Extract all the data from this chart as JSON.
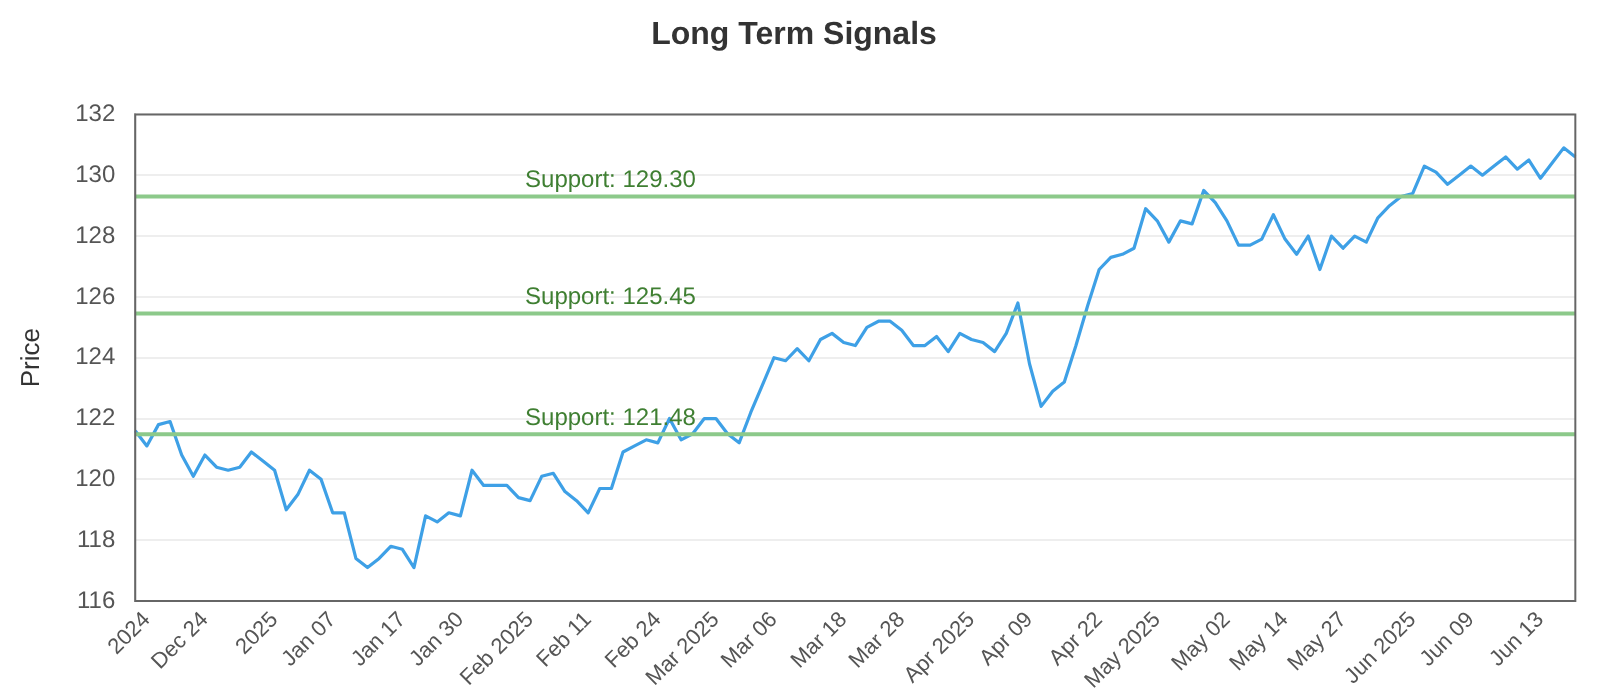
{
  "chart_data": {
    "type": "line",
    "title": "Long Term Signals",
    "ylabel": "Price",
    "categories": [
      null,
      "2024",
      null,
      null,
      null,
      null,
      "Dec 24",
      null,
      null,
      null,
      null,
      null,
      "2025",
      null,
      null,
      null,
      null,
      "Jan 07",
      null,
      null,
      null,
      null,
      null,
      "Jan 17",
      null,
      null,
      null,
      null,
      "Jan 30",
      null,
      null,
      null,
      null,
      null,
      "Feb 2025",
      null,
      null,
      null,
      null,
      "Feb 11",
      null,
      null,
      null,
      null,
      null,
      "Feb 24",
      null,
      null,
      null,
      null,
      "Mar 2025",
      null,
      null,
      null,
      null,
      "Mar 06",
      null,
      null,
      null,
      null,
      null,
      "Mar 18",
      null,
      null,
      null,
      null,
      "Mar 28",
      null,
      null,
      null,
      null,
      null,
      "Apr 2025",
      null,
      null,
      null,
      null,
      "Apr 09",
      null,
      null,
      null,
      null,
      null,
      "Apr 22",
      null,
      null,
      null,
      null,
      "May 2025",
      null,
      null,
      null,
      null,
      null,
      "May 02",
      null,
      null,
      null,
      null,
      "May 14",
      null,
      null,
      null,
      null,
      "May 27",
      null,
      null,
      null,
      null,
      null,
      "Jun 2025",
      null,
      null,
      null,
      null,
      "Jun 09",
      null,
      null,
      null,
      null,
      null,
      "Jun 13",
      null,
      null,
      null
    ],
    "series": [
      {
        "color": "#3ea0e6",
        "values": [
          121.6,
          121.1,
          121.8,
          121.9,
          120.8,
          120.1,
          120.8,
          120.4,
          120.3,
          120.4,
          120.9,
          120.6,
          120.3,
          119.0,
          119.5,
          120.3,
          120.0,
          118.9,
          118.9,
          117.4,
          117.1,
          117.4,
          117.8,
          117.7,
          117.1,
          118.8,
          118.6,
          118.9,
          118.8,
          120.3,
          119.8,
          119.8,
          119.8,
          119.4,
          119.3,
          120.1,
          120.2,
          119.6,
          119.3,
          118.9,
          119.7,
          119.7,
          120.9,
          121.1,
          121.3,
          121.2,
          122.0,
          121.3,
          121.5,
          122.0,
          122.0,
          121.5,
          121.2,
          122.2,
          123.1,
          124.0,
          123.9,
          124.3,
          123.9,
          124.6,
          124.8,
          124.5,
          124.4,
          125.0,
          125.2,
          125.2,
          124.9,
          124.4,
          124.4,
          124.7,
          124.2,
          124.8,
          124.6,
          124.5,
          124.2,
          124.8,
          125.8,
          123.8,
          122.4,
          122.9,
          123.2,
          124.4,
          125.7,
          126.9,
          127.3,
          127.4,
          127.6,
          128.9,
          128.5,
          127.8,
          128.5,
          128.4,
          129.5,
          129.1,
          128.5,
          127.7,
          127.7,
          127.9,
          128.7,
          127.9,
          127.4,
          128.0,
          126.9,
          128.0,
          127.6,
          128.0,
          127.8,
          128.6,
          129.0,
          129.3,
          129.4,
          130.3,
          130.1,
          129.7,
          130.0,
          130.3,
          130.0,
          130.3,
          130.6,
          130.2,
          130.5,
          129.9,
          130.4,
          130.9,
          130.6
        ]
      }
    ],
    "ylim": [
      116,
      132
    ],
    "yticks": [
      116,
      118,
      120,
      122,
      124,
      126,
      128,
      130,
      132
    ],
    "grid": "y",
    "legend": false,
    "marker": "none",
    "line_style": "solid",
    "ref_lines": [
      {
        "axis": "y",
        "value": 129.3,
        "label": "Support: 129.30",
        "color": "#8cc98a"
      },
      {
        "axis": "y",
        "value": 125.45,
        "label": "Support: 125.45",
        "color": "#8cc98a"
      },
      {
        "axis": "y",
        "value": 121.48,
        "label": "Support: 121.48",
        "color": "#8cc98a"
      }
    ]
  }
}
